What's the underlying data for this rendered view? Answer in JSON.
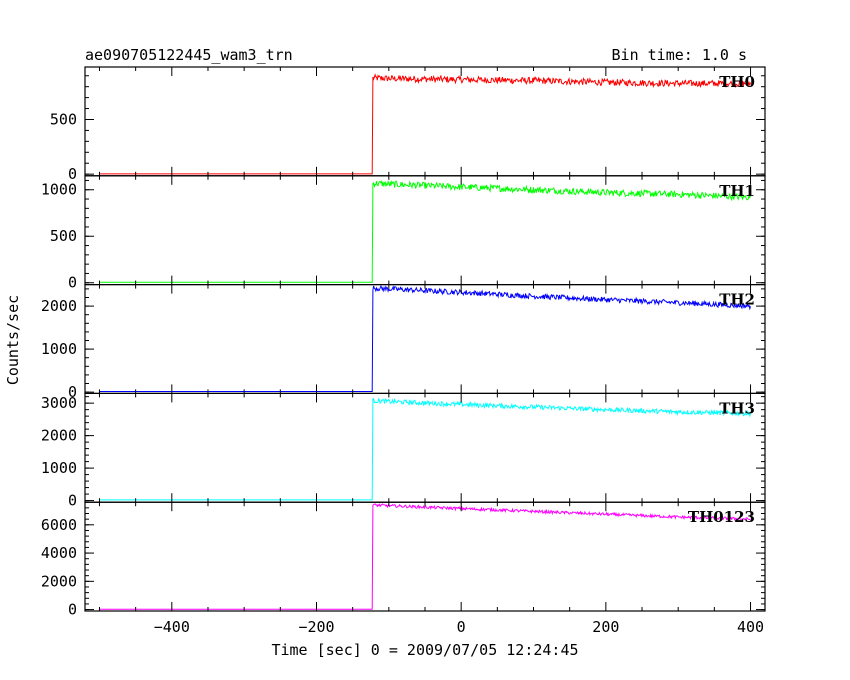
{
  "header": {
    "title": "ae090705122445_wam3_trn",
    "bin_time": "Bin time: 1.0 s"
  },
  "chart_data": {
    "type": "line",
    "title": "ae090705122445_wam3_trn",
    "subtitle": "Bin time: 1.0 s",
    "xlabel": "Time [sec] 0 = 2009/07/05 12:24:45",
    "ylabel": "Counts/sec",
    "xlim": [
      -520,
      420
    ],
    "x_ticks": [
      -400,
      -200,
      0,
      200,
      400
    ],
    "x_tick_labels": [
      "−400",
      "−200",
      "0",
      "200",
      "400"
    ],
    "grid": false,
    "series": [
      {
        "name": "TH0",
        "color": "#ff0000",
        "ylim": [
          -15,
          980
        ],
        "y_ticks": [
          0,
          500
        ],
        "y_tick_labels": [
          "0",
          "500"
        ],
        "x_start": -500,
        "x_onset": -123,
        "x_end": 400,
        "baseline": 2,
        "points": [
          [
            -123,
            2
          ],
          [
            -122,
            880
          ],
          [
            -100,
            875
          ],
          [
            -50,
            870
          ],
          [
            0,
            865
          ],
          [
            100,
            855
          ],
          [
            200,
            840
          ],
          [
            300,
            830
          ],
          [
            400,
            830
          ]
        ],
        "noise": 30
      },
      {
        "name": "TH1",
        "color": "#00ff00",
        "ylim": [
          -20,
          1150
        ],
        "y_ticks": [
          0,
          500,
          1000
        ],
        "y_tick_labels": [
          "0",
          "500",
          "1000"
        ],
        "x_start": -500,
        "x_onset": -123,
        "x_end": 400,
        "baseline": 5,
        "points": [
          [
            -123,
            5
          ],
          [
            -122,
            1070
          ],
          [
            -100,
            1060
          ],
          [
            0,
            1030
          ],
          [
            100,
            1000
          ],
          [
            200,
            970
          ],
          [
            300,
            950
          ],
          [
            400,
            920
          ]
        ],
        "noise": 35
      },
      {
        "name": "TH2",
        "color": "#0000ff",
        "ylim": [
          -30,
          2500
        ],
        "y_ticks": [
          0,
          1000,
          2000
        ],
        "y_tick_labels": [
          "0",
          "1000",
          "2000"
        ],
        "x_start": -500,
        "x_onset": -123,
        "x_end": 400,
        "baseline": 15,
        "points": [
          [
            -123,
            15
          ],
          [
            -122,
            2420
          ],
          [
            -100,
            2400
          ],
          [
            0,
            2320
          ],
          [
            100,
            2230
          ],
          [
            200,
            2150
          ],
          [
            300,
            2080
          ],
          [
            400,
            2000
          ]
        ],
        "noise": 60
      },
      {
        "name": "TH3",
        "color": "#00ffff",
        "ylim": [
          -50,
          3300
        ],
        "y_ticks": [
          0,
          1000,
          2000,
          3000
        ],
        "y_tick_labels": [
          "0",
          "1000",
          "2000",
          "3000"
        ],
        "x_start": -500,
        "x_onset": -123,
        "x_end": 400,
        "baseline": 20,
        "points": [
          [
            -123,
            20
          ],
          [
            -122,
            3080
          ],
          [
            -100,
            3050
          ],
          [
            0,
            2960
          ],
          [
            100,
            2880
          ],
          [
            200,
            2800
          ],
          [
            300,
            2730
          ],
          [
            400,
            2680
          ]
        ],
        "noise": 70
      },
      {
        "name": "TH0123",
        "color": "#ff00ff",
        "ylim": [
          -100,
          7600
        ],
        "y_ticks": [
          0,
          2000,
          4000,
          6000
        ],
        "y_tick_labels": [
          "0",
          "2000",
          "4000",
          "6000"
        ],
        "x_start": -500,
        "x_onset": -123,
        "x_end": 400,
        "baseline": 30,
        "points": [
          [
            -123,
            30
          ],
          [
            -122,
            7400
          ],
          [
            -100,
            7350
          ],
          [
            0,
            7150
          ],
          [
            100,
            6950
          ],
          [
            200,
            6750
          ],
          [
            300,
            6550
          ],
          [
            400,
            6400
          ]
        ],
        "noise": 100
      }
    ]
  }
}
